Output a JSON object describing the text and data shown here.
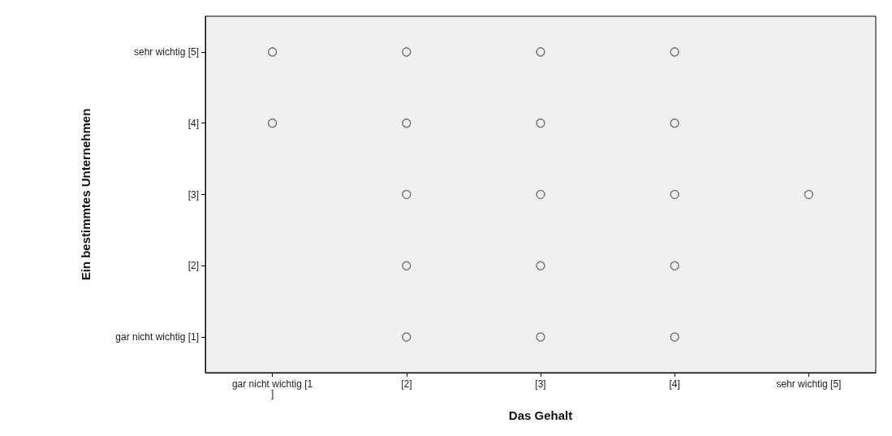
{
  "chart_data": {
    "type": "scatter",
    "xlabel": "Das Gehalt",
    "ylabel": "Ein bestimmtes Unternehmen",
    "xlim": [
      0.5,
      5.5
    ],
    "ylim": [
      0.5,
      5.5
    ],
    "xticks": [
      {
        "value": 1,
        "label": "gar nicht wichtig [1]"
      },
      {
        "value": 2,
        "label": "[2]"
      },
      {
        "value": 3,
        "label": "[3]"
      },
      {
        "value": 4,
        "label": "[4]"
      },
      {
        "value": 5,
        "label": "sehr wichtig [5]"
      }
    ],
    "yticks": [
      {
        "value": 1,
        "label": "gar nicht wichtig [1]"
      },
      {
        "value": 2,
        "label": "[2]"
      },
      {
        "value": 3,
        "label": "[3]"
      },
      {
        "value": 4,
        "label": "[4]"
      },
      {
        "value": 5,
        "label": "sehr wichtig [5]"
      }
    ],
    "grid": false,
    "marker": "circle",
    "series": [
      {
        "color": "#666666",
        "x": [
          1,
          2,
          3,
          4,
          1,
          2,
          3,
          4,
          2,
          3,
          4,
          5,
          2,
          3,
          4,
          2,
          3,
          4
        ],
        "values": [
          5,
          5,
          5,
          5,
          4,
          4,
          4,
          4,
          3,
          3,
          3,
          3,
          2,
          2,
          2,
          1,
          1,
          1
        ]
      }
    ]
  }
}
